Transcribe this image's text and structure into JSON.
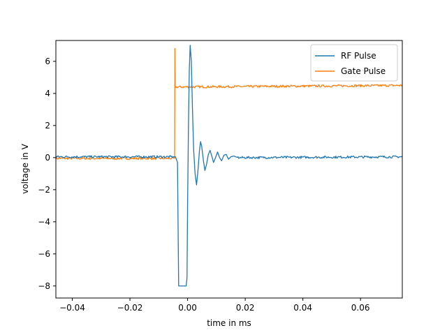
{
  "chart_data": {
    "type": "line",
    "xlabel": "time in ms",
    "ylabel": "voltage in V",
    "xlim": [
      -0.0457,
      0.0745
    ],
    "ylim": [
      -8.75,
      7.3
    ],
    "xticks": [
      -0.04,
      -0.02,
      0.0,
      0.02,
      0.04,
      0.06
    ],
    "xtick_labels": [
      "−0.04",
      "−0.02",
      "0.00",
      "0.02",
      "0.04",
      "0.06"
    ],
    "yticks": [
      -8,
      -6,
      -4,
      -2,
      0,
      2,
      4,
      6
    ],
    "ytick_labels": [
      "−8",
      "−6",
      "−4",
      "−2",
      "0",
      "2",
      "4",
      "6"
    ],
    "grid": false,
    "legend_position": "top-right",
    "series": [
      {
        "name": "RF Pulse",
        "color": "#1f77b4",
        "points": [
          [
            -0.0457,
            0.05
          ],
          [
            -0.005,
            0.05
          ],
          [
            -0.0042,
            0.05
          ],
          [
            -0.0035,
            -0.3
          ],
          [
            -0.0031,
            -8.0
          ],
          [
            -0.0005,
            -8.0
          ],
          [
            -0.0002,
            -7.5
          ],
          [
            0.0,
            -3.0
          ],
          [
            0.0003,
            2.0
          ],
          [
            0.0006,
            5.5
          ],
          [
            0.0009,
            7.0
          ],
          [
            0.0013,
            6.0
          ],
          [
            0.0017,
            3.0
          ],
          [
            0.0021,
            0.5
          ],
          [
            0.0026,
            -1.0
          ],
          [
            0.0031,
            -1.7
          ],
          [
            0.0036,
            -0.8
          ],
          [
            0.0041,
            0.4
          ],
          [
            0.0045,
            1.0
          ],
          [
            0.0049,
            0.7
          ],
          [
            0.0055,
            -0.2
          ],
          [
            0.006,
            -0.8
          ],
          [
            0.0066,
            -0.4
          ],
          [
            0.0072,
            0.2
          ],
          [
            0.0078,
            0.45
          ],
          [
            0.0084,
            0.1
          ],
          [
            0.009,
            -0.3
          ],
          [
            0.0097,
            0.0
          ],
          [
            0.0104,
            0.35
          ],
          [
            0.0111,
            0.0
          ],
          [
            0.0118,
            -0.2
          ],
          [
            0.0126,
            0.15
          ],
          [
            0.0134,
            0.2
          ],
          [
            0.0142,
            -0.1
          ],
          [
            0.015,
            0.05
          ],
          [
            0.016,
            0.1
          ],
          [
            0.0175,
            0.0
          ],
          [
            0.0745,
            0.05
          ]
        ]
      },
      {
        "name": "Gate Pulse",
        "color": "#ff7f0e",
        "points": [
          [
            -0.0457,
            -0.05
          ],
          [
            -0.0045,
            -0.05
          ],
          [
            -0.0044,
            6.8
          ],
          [
            -0.0043,
            4.4
          ],
          [
            0.0745,
            4.5
          ]
        ]
      }
    ]
  }
}
